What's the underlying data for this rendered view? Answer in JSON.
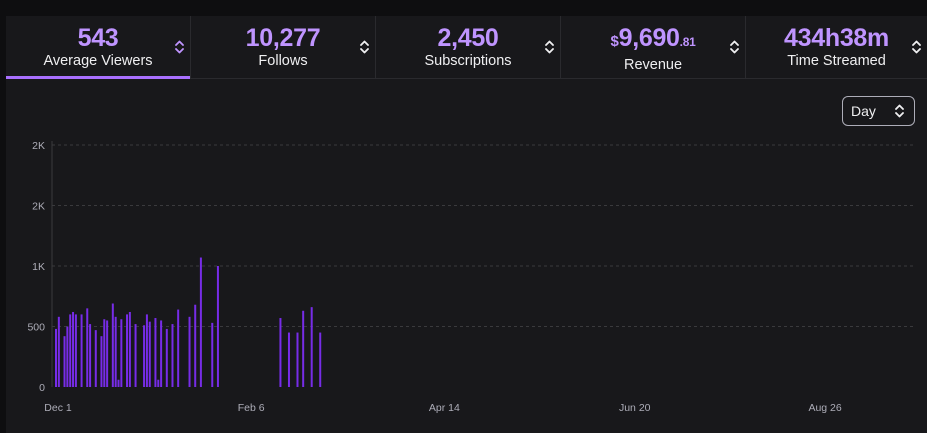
{
  "tabs": [
    {
      "value": "543",
      "label": "Average Viewers"
    },
    {
      "value": "10,277",
      "label": "Follows"
    },
    {
      "value": "2,450",
      "label": "Subscriptions"
    },
    {
      "value_currency": "$",
      "value_main": "9,690",
      "value_cents": ".81",
      "label": "Revenue"
    },
    {
      "value": "434h38m",
      "label": "Time Streamed"
    }
  ],
  "granularity": {
    "selected": "Day"
  },
  "colors": {
    "accent": "#a970ff",
    "bar": "#772ce8",
    "value": "#bf94ff",
    "grid": "#3a3a3d"
  },
  "chart_data": {
    "type": "bar",
    "title": "",
    "xlabel": "",
    "ylabel": "",
    "y_ticks": [
      {
        "value": 0,
        "label": "0"
      },
      {
        "value": 500,
        "label": "500"
      },
      {
        "value": 1000,
        "label": "1K"
      },
      {
        "value": 1500,
        "label": "2K"
      },
      {
        "value": 2000,
        "label": "2K"
      }
    ],
    "ylim": [
      0,
      2000
    ],
    "x_tick_labels": [
      {
        "index": 0,
        "label": "Dec 1"
      },
      {
        "index": 68,
        "label": "Feb 6"
      },
      {
        "index": 136,
        "label": "Apr 14"
      },
      {
        "index": 203,
        "label": "Jun 20"
      },
      {
        "index": 270,
        "label": "Aug 26"
      }
    ],
    "values": [
      480,
      580,
      0,
      420,
      500,
      600,
      620,
      600,
      0,
      600,
      0,
      650,
      520,
      0,
      470,
      0,
      420,
      560,
      550,
      0,
      690,
      580,
      60,
      560,
      0,
      600,
      620,
      0,
      520,
      0,
      0,
      510,
      600,
      540,
      0,
      570,
      60,
      550,
      0,
      480,
      0,
      520,
      0,
      640,
      0,
      0,
      0,
      580,
      0,
      680,
      0,
      1070,
      0,
      0,
      0,
      530,
      0,
      1000,
      0,
      0,
      0,
      0,
      0,
      0,
      0,
      0,
      0,
      0,
      0,
      0,
      0,
      0,
      0,
      0,
      0,
      0,
      0,
      0,
      0,
      570,
      0,
      0,
      450,
      0,
      0,
      450,
      0,
      630,
      0,
      0,
      660,
      0,
      0,
      450,
      0,
      0,
      0,
      0,
      0,
      0,
      0,
      0,
      0,
      0,
      0,
      0,
      0,
      0,
      0,
      0,
      0,
      0,
      0,
      0,
      0,
      0,
      0,
      0,
      0,
      0,
      0,
      0,
      0,
      0,
      0,
      0,
      0,
      0,
      0,
      0,
      0,
      0,
      0,
      0,
      0,
      0,
      0,
      0,
      0,
      0,
      0,
      0,
      0,
      0,
      0,
      0,
      0,
      0,
      0,
      0,
      0,
      0,
      0,
      0,
      0,
      0,
      0,
      0,
      0,
      0,
      0,
      0,
      0,
      0,
      0,
      0,
      0,
      0,
      0,
      0,
      0,
      0,
      0,
      0,
      0,
      0,
      0,
      0,
      0,
      0,
      0,
      0,
      0,
      0,
      0,
      0,
      0,
      0,
      0,
      0,
      0,
      0,
      0,
      0,
      0,
      0,
      0,
      0,
      0,
      0,
      0,
      0,
      0,
      0,
      0,
      0,
      0,
      0,
      0,
      0,
      0,
      0,
      0,
      0,
      0,
      0,
      0,
      0,
      0,
      0,
      0,
      0,
      0,
      0,
      0,
      0,
      0,
      0,
      0,
      0,
      0,
      0,
      0,
      0,
      0,
      0,
      0,
      0,
      0,
      0,
      0,
      0,
      0,
      0,
      0,
      0,
      0,
      0,
      0,
      0,
      0,
      0,
      0,
      0,
      0,
      0,
      0,
      0,
      0,
      0,
      0,
      0,
      0,
      0,
      0,
      0,
      0,
      0,
      0,
      0,
      0,
      0,
      0,
      0,
      0,
      0,
      0,
      0,
      0,
      0,
      0,
      0,
      0,
      0,
      0,
      0,
      0,
      0,
      0,
      0,
      0,
      0,
      0,
      0,
      0,
      0,
      0,
      0,
      0,
      0,
      0,
      0,
      0
    ]
  }
}
